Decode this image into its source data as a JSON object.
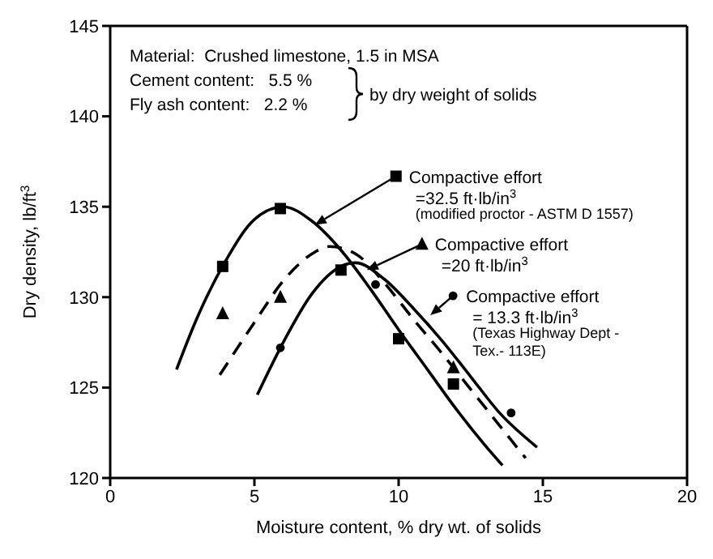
{
  "chart_data": {
    "type": "scatter",
    "xlabel": "Moisture content, % dry wt. of solids",
    "ylabel": "Dry density, lb/ft$^{3}$",
    "xlim": [
      0,
      20
    ],
    "xticks": [
      0,
      5,
      10,
      15,
      20
    ],
    "ylim": [
      120,
      145
    ],
    "yticks": [
      120,
      125,
      130,
      135,
      140,
      145
    ],
    "series": [
      {
        "type": "scatter",
        "marker": "square",
        "color": "#000000",
        "x": [
          3.9,
          5.9,
          8,
          10,
          11.9
        ],
        "values": [
          131.7,
          134.9,
          131.5,
          127.7,
          125.2
        ]
      },
      {
        "type": "line",
        "marker": "none",
        "line_style": "solid",
        "color": "#000000",
        "x": [
          2.3,
          3,
          4,
          5,
          6,
          7,
          8,
          9,
          10,
          11,
          12,
          13,
          13.6
        ],
        "values": [
          126,
          128.8,
          132,
          134.3,
          135,
          134.2,
          132.6,
          130.5,
          128.2,
          126,
          123.8,
          121.8,
          120.7
        ]
      },
      {
        "type": "scatter",
        "marker": "triangle",
        "color": "#000000",
        "x": [
          3.9,
          5.9,
          11.9
        ],
        "values": [
          129.1,
          130,
          126.1
        ]
      },
      {
        "type": "line",
        "marker": "none",
        "line_style": "dashed",
        "color": "#000000",
        "x": [
          3.8,
          5,
          6,
          7,
          7.6,
          8.5,
          9.5,
          10.5,
          11.5,
          12.5,
          13.5,
          14.4
        ],
        "values": [
          125.7,
          128.6,
          130.9,
          132.4,
          132.8,
          132.4,
          130.8,
          128.8,
          126.9,
          124.9,
          122.9,
          121.1
        ]
      },
      {
        "type": "scatter",
        "marker": "circle",
        "color": "#000000",
        "x": [
          5.9,
          9.2,
          13.9
        ],
        "values": [
          127.2,
          130.7,
          123.6
        ]
      },
      {
        "type": "line",
        "marker": "none",
        "line_style": "solid",
        "color": "#000000",
        "x": [
          5.1,
          6,
          7,
          8,
          8.5,
          9.5,
          10.5,
          11.5,
          12.5,
          13.5,
          14.8
        ],
        "values": [
          124.6,
          127.5,
          130.2,
          131.7,
          131.9,
          131,
          129.4,
          127.6,
          125.6,
          123.6,
          121.7
        ]
      }
    ],
    "annotations": [
      "Material:  Crushed limestone, 1.5 in MSA",
      "Cement content:   5.5 %",
      "Fly ash content:   2.2 %",
      "by dry weight of solids",
      {
        "text": "Compactive effort\n=32.5 ft·lb/in$^{3}$\n(modified proctor - ASTM D 1557)",
        "x": 7.1,
        "y": 134
      },
      {
        "text": "Compactive effort\n=20 ft·lb/in$^{3}$",
        "x": 8.9,
        "y": 131.5
      },
      {
        "text": "Compactive effort\n= 13.3 ft·lb/in$^{3}$\n(Texas Highway Dept -\nTex.- 113E)",
        "x": 11.1,
        "y": 129
      }
    ]
  }
}
